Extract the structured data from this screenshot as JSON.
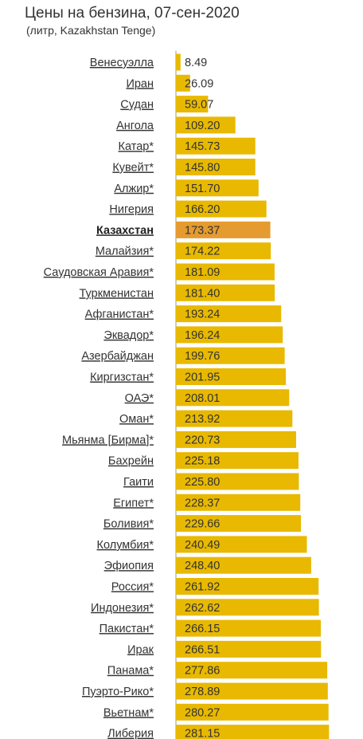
{
  "header": {
    "title": "Цены на бензина, 07-сен-2020",
    "subtitle": "(литр, Kazakhstan Tenge)"
  },
  "colors": {
    "bar": "#e8b900",
    "highlight_bar": "#e59b2f",
    "axis": "#999999"
  },
  "chart_data": {
    "type": "bar",
    "orientation": "horizontal",
    "title": "Цены на бензина, 07-сен-2020",
    "subtitle": "(литр, Kazakhstan Tenge)",
    "highlight": "Казахстан",
    "xlim": [
      0,
      300
    ],
    "categories": [
      "Венесуэлла",
      "Иран",
      "Судан",
      "Ангола",
      "Катар*",
      "Кувейт*",
      "Алжир*",
      "Нигерия",
      "Казахстан",
      "Малайзия*",
      "Саудовская Аравия*",
      "Туркменистан",
      "Афганистан*",
      "Эквадор*",
      "Азербайджан",
      "Киргизстан*",
      "ОАЭ*",
      "Оман*",
      "Мьянма [Бирма]*",
      "Бахрейн",
      "Гаити",
      "Египет*",
      "Боливия*",
      "Колумбия*",
      "Эфиопия",
      "Россия*",
      "Индонезия*",
      "Пакистан*",
      "Ирак",
      "Панама*",
      "Пуэрто-Рико*",
      "Вьетнам*",
      "Либерия"
    ],
    "values": [
      8.49,
      26.09,
      59.07,
      109.2,
      145.73,
      145.8,
      151.7,
      166.2,
      173.37,
      174.22,
      181.09,
      181.4,
      193.24,
      196.24,
      199.76,
      201.95,
      208.01,
      213.92,
      220.73,
      225.18,
      225.8,
      228.37,
      229.66,
      240.49,
      248.4,
      261.92,
      262.62,
      266.15,
      266.51,
      277.86,
      278.89,
      280.27,
      281.15
    ],
    "labels": [
      "8.49",
      "26.09",
      "59.07",
      "109.20",
      "145.73",
      "145.80",
      "151.70",
      "166.20",
      "173.37",
      "174.22",
      "181.09",
      "181.40",
      "193.24",
      "196.24",
      "199.76",
      "201.95",
      "208.01",
      "213.92",
      "220.73",
      "225.18",
      "225.80",
      "228.37",
      "229.66",
      "240.49",
      "248.40",
      "261.92",
      "262.62",
      "266.15",
      "266.51",
      "277.86",
      "278.89",
      "280.27",
      "281.15"
    ]
  }
}
